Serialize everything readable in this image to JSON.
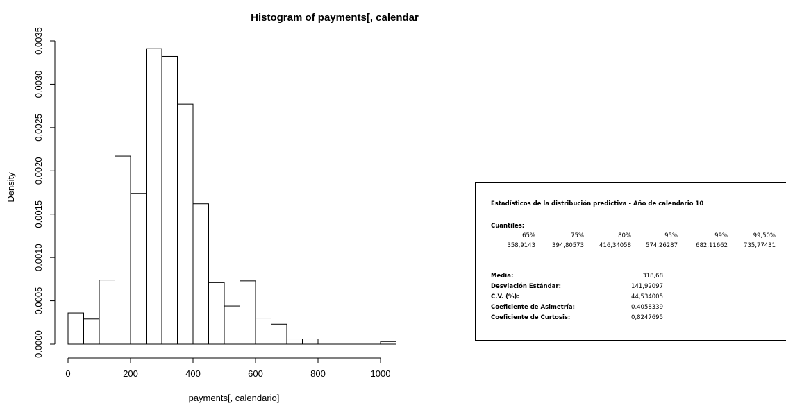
{
  "chart_data": {
    "type": "histogram",
    "title": "Histogram of payments[, calendar",
    "xlabel": "payments[, calendario]",
    "ylabel": "Density",
    "xlim": [
      0,
      1050
    ],
    "ylim": [
      0,
      0.0035
    ],
    "x_ticks": [
      0,
      200,
      400,
      600,
      800,
      1000
    ],
    "y_ticks": [
      "0.0000",
      "0.0005",
      "0.0010",
      "0.0015",
      "0.0020",
      "0.0025",
      "0.0030",
      "0.0035"
    ],
    "bins": [
      {
        "from": 0,
        "to": 50,
        "density": 0.00036
      },
      {
        "from": 50,
        "to": 100,
        "density": 0.00029
      },
      {
        "from": 100,
        "to": 150,
        "density": 0.00074
      },
      {
        "from": 150,
        "to": 200,
        "density": 0.00217
      },
      {
        "from": 200,
        "to": 250,
        "density": 0.00174
      },
      {
        "from": 250,
        "to": 300,
        "density": 0.00341
      },
      {
        "from": 300,
        "to": 350,
        "density": 0.00332
      },
      {
        "from": 350,
        "to": 400,
        "density": 0.00277
      },
      {
        "from": 400,
        "to": 450,
        "density": 0.00162
      },
      {
        "from": 450,
        "to": 500,
        "density": 0.00071
      },
      {
        "from": 500,
        "to": 550,
        "density": 0.00044
      },
      {
        "from": 550,
        "to": 600,
        "density": 0.00073
      },
      {
        "from": 600,
        "to": 650,
        "density": 0.0003
      },
      {
        "from": 650,
        "to": 700,
        "density": 0.00023
      },
      {
        "from": 700,
        "to": 750,
        "density": 6e-05
      },
      {
        "from": 750,
        "to": 800,
        "density": 6e-05
      },
      {
        "from": 800,
        "to": 850,
        "density": 0.0
      },
      {
        "from": 850,
        "to": 900,
        "density": 0.0
      },
      {
        "from": 900,
        "to": 950,
        "density": 0.0
      },
      {
        "from": 950,
        "to": 1000,
        "density": 0.0
      },
      {
        "from": 1000,
        "to": 1050,
        "density": 3e-05
      }
    ],
    "colors": {
      "bar_fill": "#ffffff",
      "bar_stroke": "#000000"
    }
  },
  "stats": {
    "title": "Estadísticos de la distribución predictiva - Año de calendario 10",
    "quantiles_label": "Cuantiles:",
    "quantile_headers": [
      "65%",
      "75%",
      "80%",
      "95%",
      "99%",
      "99,50%"
    ],
    "quantile_values": [
      "358,9143",
      "394,80573",
      "416,34058",
      "574,26287",
      "682,11662",
      "735,77431"
    ],
    "rows": [
      {
        "label": "Media:",
        "value": "318,68"
      },
      {
        "label": "Desviación Estándar:",
        "value": "141,92097"
      },
      {
        "label": "C.V. (%):",
        "value": "44,534005"
      },
      {
        "label": "Coeficiente de Asimetría:",
        "value": "0,4058339"
      },
      {
        "label": "Coeficiente de Curtosis:",
        "value": "0,8247695"
      }
    ]
  }
}
